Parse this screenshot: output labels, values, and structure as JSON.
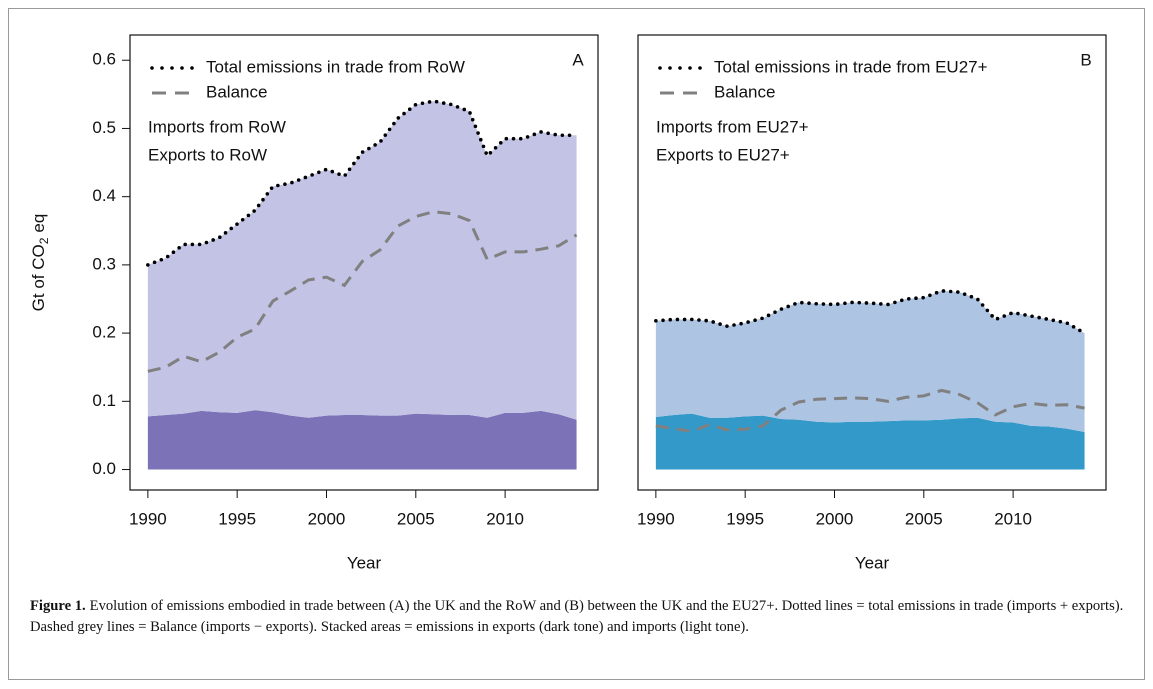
{
  "chart_data": [
    {
      "type": "area",
      "panel_label": "A",
      "xlabel": "Year",
      "ylabel": [
        "Gt of CO",
        "2",
        "eq"
      ],
      "x": [
        1990,
        1991,
        1992,
        1993,
        1994,
        1995,
        1996,
        1997,
        1998,
        1999,
        2000,
        2001,
        2002,
        2003,
        2004,
        2005,
        2006,
        2007,
        2008,
        2009,
        2010,
        2011,
        2012,
        2013,
        2014
      ],
      "xlim": [
        1989,
        2015.2
      ],
      "xticks": [
        1990,
        1995,
        2000,
        2005,
        2010
      ],
      "ylim": [
        -0.03,
        0.637
      ],
      "yticks": [
        {
          "value": 0,
          "label": "0.0"
        },
        0.1,
        0.2,
        0.3,
        0.4,
        0.5,
        0.6
      ],
      "series": [
        {
          "name": "Total emissions in trade from RoW",
          "kind": "line",
          "dash": "dotted",
          "color": "#000000",
          "values": [
            0.3,
            0.31,
            0.33,
            0.33,
            0.34,
            0.36,
            0.38,
            0.415,
            0.42,
            0.43,
            0.44,
            0.43,
            0.465,
            0.48,
            0.515,
            0.535,
            0.54,
            0.535,
            0.525,
            0.46,
            0.485,
            0.485,
            0.495,
            0.49,
            0.49
          ]
        },
        {
          "name": "Balance",
          "kind": "line",
          "dash": "dashed",
          "color": "#808080",
          "values": [
            0.144,
            0.15,
            0.166,
            0.158,
            0.172,
            0.194,
            0.206,
            0.247,
            0.262,
            0.278,
            0.282,
            0.27,
            0.305,
            0.322,
            0.357,
            0.371,
            0.378,
            0.375,
            0.365,
            0.308,
            0.319,
            0.319,
            0.323,
            0.328,
            0.344
          ]
        },
        {
          "name": "Imports from RoW",
          "kind": "stack",
          "color": "#c3c3e5",
          "label_color": "#9d96d2",
          "values": [
            0.222,
            0.23,
            0.248,
            0.244,
            0.256,
            0.277,
            0.293,
            0.331,
            0.341,
            0.354,
            0.361,
            0.35,
            0.385,
            0.401,
            0.436,
            0.453,
            0.459,
            0.455,
            0.445,
            0.384,
            0.402,
            0.402,
            0.409,
            0.409,
            0.417
          ]
        },
        {
          "name": "Exports to RoW",
          "kind": "stack",
          "color": "#7b72b8",
          "label_color": "#6a5ca8",
          "values": [
            0.078,
            0.08,
            0.082,
            0.086,
            0.084,
            0.083,
            0.087,
            0.084,
            0.079,
            0.076,
            0.079,
            0.08,
            0.08,
            0.079,
            0.079,
            0.082,
            0.081,
            0.08,
            0.08,
            0.076,
            0.083,
            0.083,
            0.086,
            0.081,
            0.073
          ]
        }
      ]
    },
    {
      "type": "area",
      "panel_label": "B",
      "xlabel": "Year",
      "x": [
        1990,
        1991,
        1992,
        1993,
        1994,
        1995,
        1996,
        1997,
        1998,
        1999,
        2000,
        2001,
        2002,
        2003,
        2004,
        2005,
        2006,
        2007,
        2008,
        2009,
        2010,
        2011,
        2012,
        2013,
        2014
      ],
      "xlim": [
        1989,
        2015.2
      ],
      "xticks": [
        1990,
        1995,
        2000,
        2005,
        2010
      ],
      "ylim": [
        -0.03,
        0.637
      ],
      "series": [
        {
          "name": "Total emissions in trade from EU27+",
          "kind": "line",
          "dash": "dotted",
          "color": "#000000",
          "values": [
            0.218,
            0.22,
            0.22,
            0.218,
            0.21,
            0.215,
            0.222,
            0.235,
            0.245,
            0.243,
            0.242,
            0.245,
            0.244,
            0.242,
            0.25,
            0.252,
            0.262,
            0.26,
            0.25,
            0.22,
            0.23,
            0.225,
            0.22,
            0.215,
            0.2
          ]
        },
        {
          "name": "Balance",
          "kind": "line",
          "dash": "dashed",
          "color": "#808080",
          "values": [
            0.064,
            0.06,
            0.056,
            0.066,
            0.058,
            0.059,
            0.064,
            0.087,
            0.099,
            0.103,
            0.104,
            0.105,
            0.104,
            0.1,
            0.106,
            0.108,
            0.116,
            0.11,
            0.098,
            0.08,
            0.092,
            0.097,
            0.094,
            0.095,
            0.09
          ]
        },
        {
          "name": "Imports from EU27+",
          "kind": "stack",
          "color": "#adc4e3",
          "label_color": "#b9cde8",
          "values": [
            0.141,
            0.14,
            0.138,
            0.142,
            0.134,
            0.137,
            0.143,
            0.161,
            0.172,
            0.173,
            0.173,
            0.175,
            0.174,
            0.171,
            0.178,
            0.18,
            0.189,
            0.185,
            0.174,
            0.15,
            0.161,
            0.161,
            0.157,
            0.155,
            0.145
          ]
        },
        {
          "name": "Exports to EU27+",
          "kind": "stack",
          "color": "#3399c9",
          "label_color": "#2e8fc2",
          "values": [
            0.077,
            0.08,
            0.082,
            0.076,
            0.076,
            0.078,
            0.079,
            0.074,
            0.073,
            0.07,
            0.069,
            0.07,
            0.07,
            0.071,
            0.072,
            0.072,
            0.073,
            0.075,
            0.076,
            0.07,
            0.069,
            0.064,
            0.063,
            0.06,
            0.055
          ]
        }
      ]
    }
  ],
  "caption": {
    "label": "Figure 1.",
    "text": "Evolution of emissions embodied in trade between (A) the UK and the RoW and (B) between the UK and the EU27+. Dotted lines = total emissions in trade (imports + exports). Dashed grey lines = Balance (imports − exports). Stacked areas = emissions in exports (dark tone) and imports (light tone)."
  }
}
